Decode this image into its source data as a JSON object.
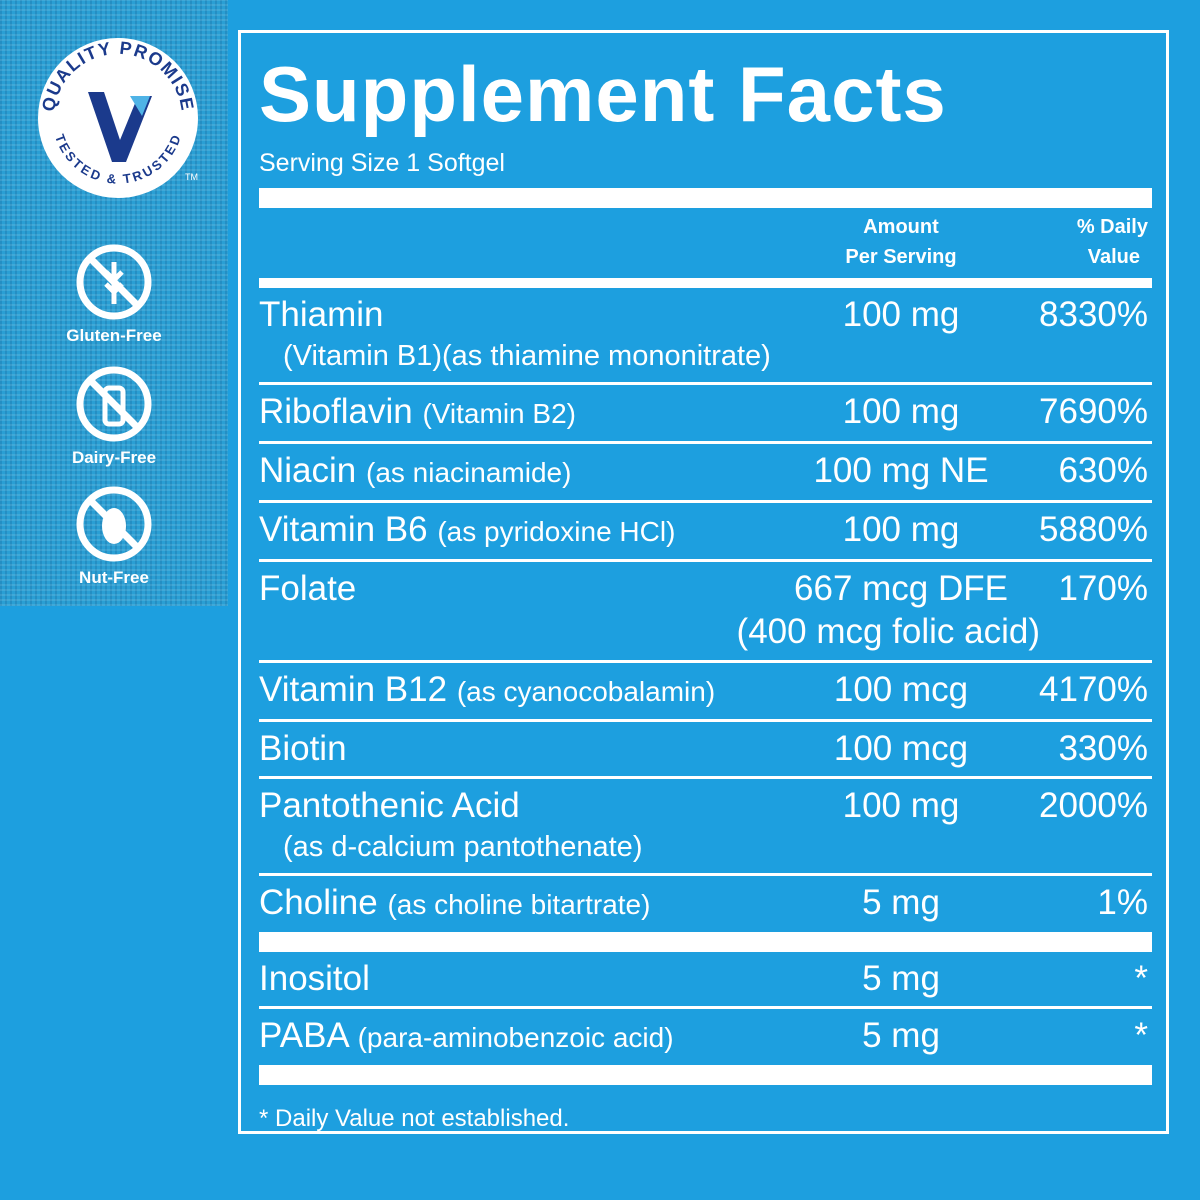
{
  "badge": {
    "top": "QUALITY PROMISE",
    "bottom": "TESTED & TRUSTED",
    "tm": "TM"
  },
  "features": [
    "Gluten-Free",
    "Dairy-Free",
    "Nut-Free"
  ],
  "facts": {
    "title": "Supplement Facts",
    "serving": "Serving Size 1 Softgel",
    "header": {
      "amount": [
        "Amount",
        "Per Serving"
      ],
      "dv": [
        "% Daily",
        "Value"
      ]
    },
    "groups": [
      [
        {
          "name": "Thiamin",
          "subline": "(Vitamin B1)(as thiamine mononitrate)",
          "amount": "100 mg",
          "dv": "8330%"
        },
        {
          "name": "Riboflavin",
          "detail": "(Vitamin B2)",
          "amount": "100 mg",
          "dv": "7690%"
        },
        {
          "name": "Niacin",
          "detail": "(as niacinamide)",
          "amount": "100 mg NE",
          "dv": "630%"
        },
        {
          "name": "Vitamin B6",
          "detail": "(as pyridoxine HCl)",
          "amount": "100 mg",
          "dv": "5880%"
        },
        {
          "name": "Folate",
          "amount": "667 mcg DFE",
          "amount_note": "(400 mcg folic acid)",
          "dv": "170%"
        },
        {
          "name": "Vitamin B12",
          "detail": "(as cyanocobalamin)",
          "amount": "100 mcg",
          "dv": "4170%"
        },
        {
          "name": "Biotin",
          "amount": "100 mcg",
          "dv": "330%"
        },
        {
          "name": "Pantothenic Acid",
          "subline": "(as d-calcium pantothenate)",
          "amount": "100 mg",
          "dv": "2000%"
        },
        {
          "name": "Choline",
          "detail": "(as choline bitartrate)",
          "amount": "5 mg",
          "dv": "1%"
        }
      ],
      [
        {
          "name": "Inositol",
          "amount": "5 mg",
          "dv": "*"
        },
        {
          "name": "PABA",
          "detail": "(para-aminobenzoic acid)",
          "amount": "5 mg",
          "dv": "*"
        }
      ]
    ],
    "footnote": "* Daily Value not established."
  }
}
